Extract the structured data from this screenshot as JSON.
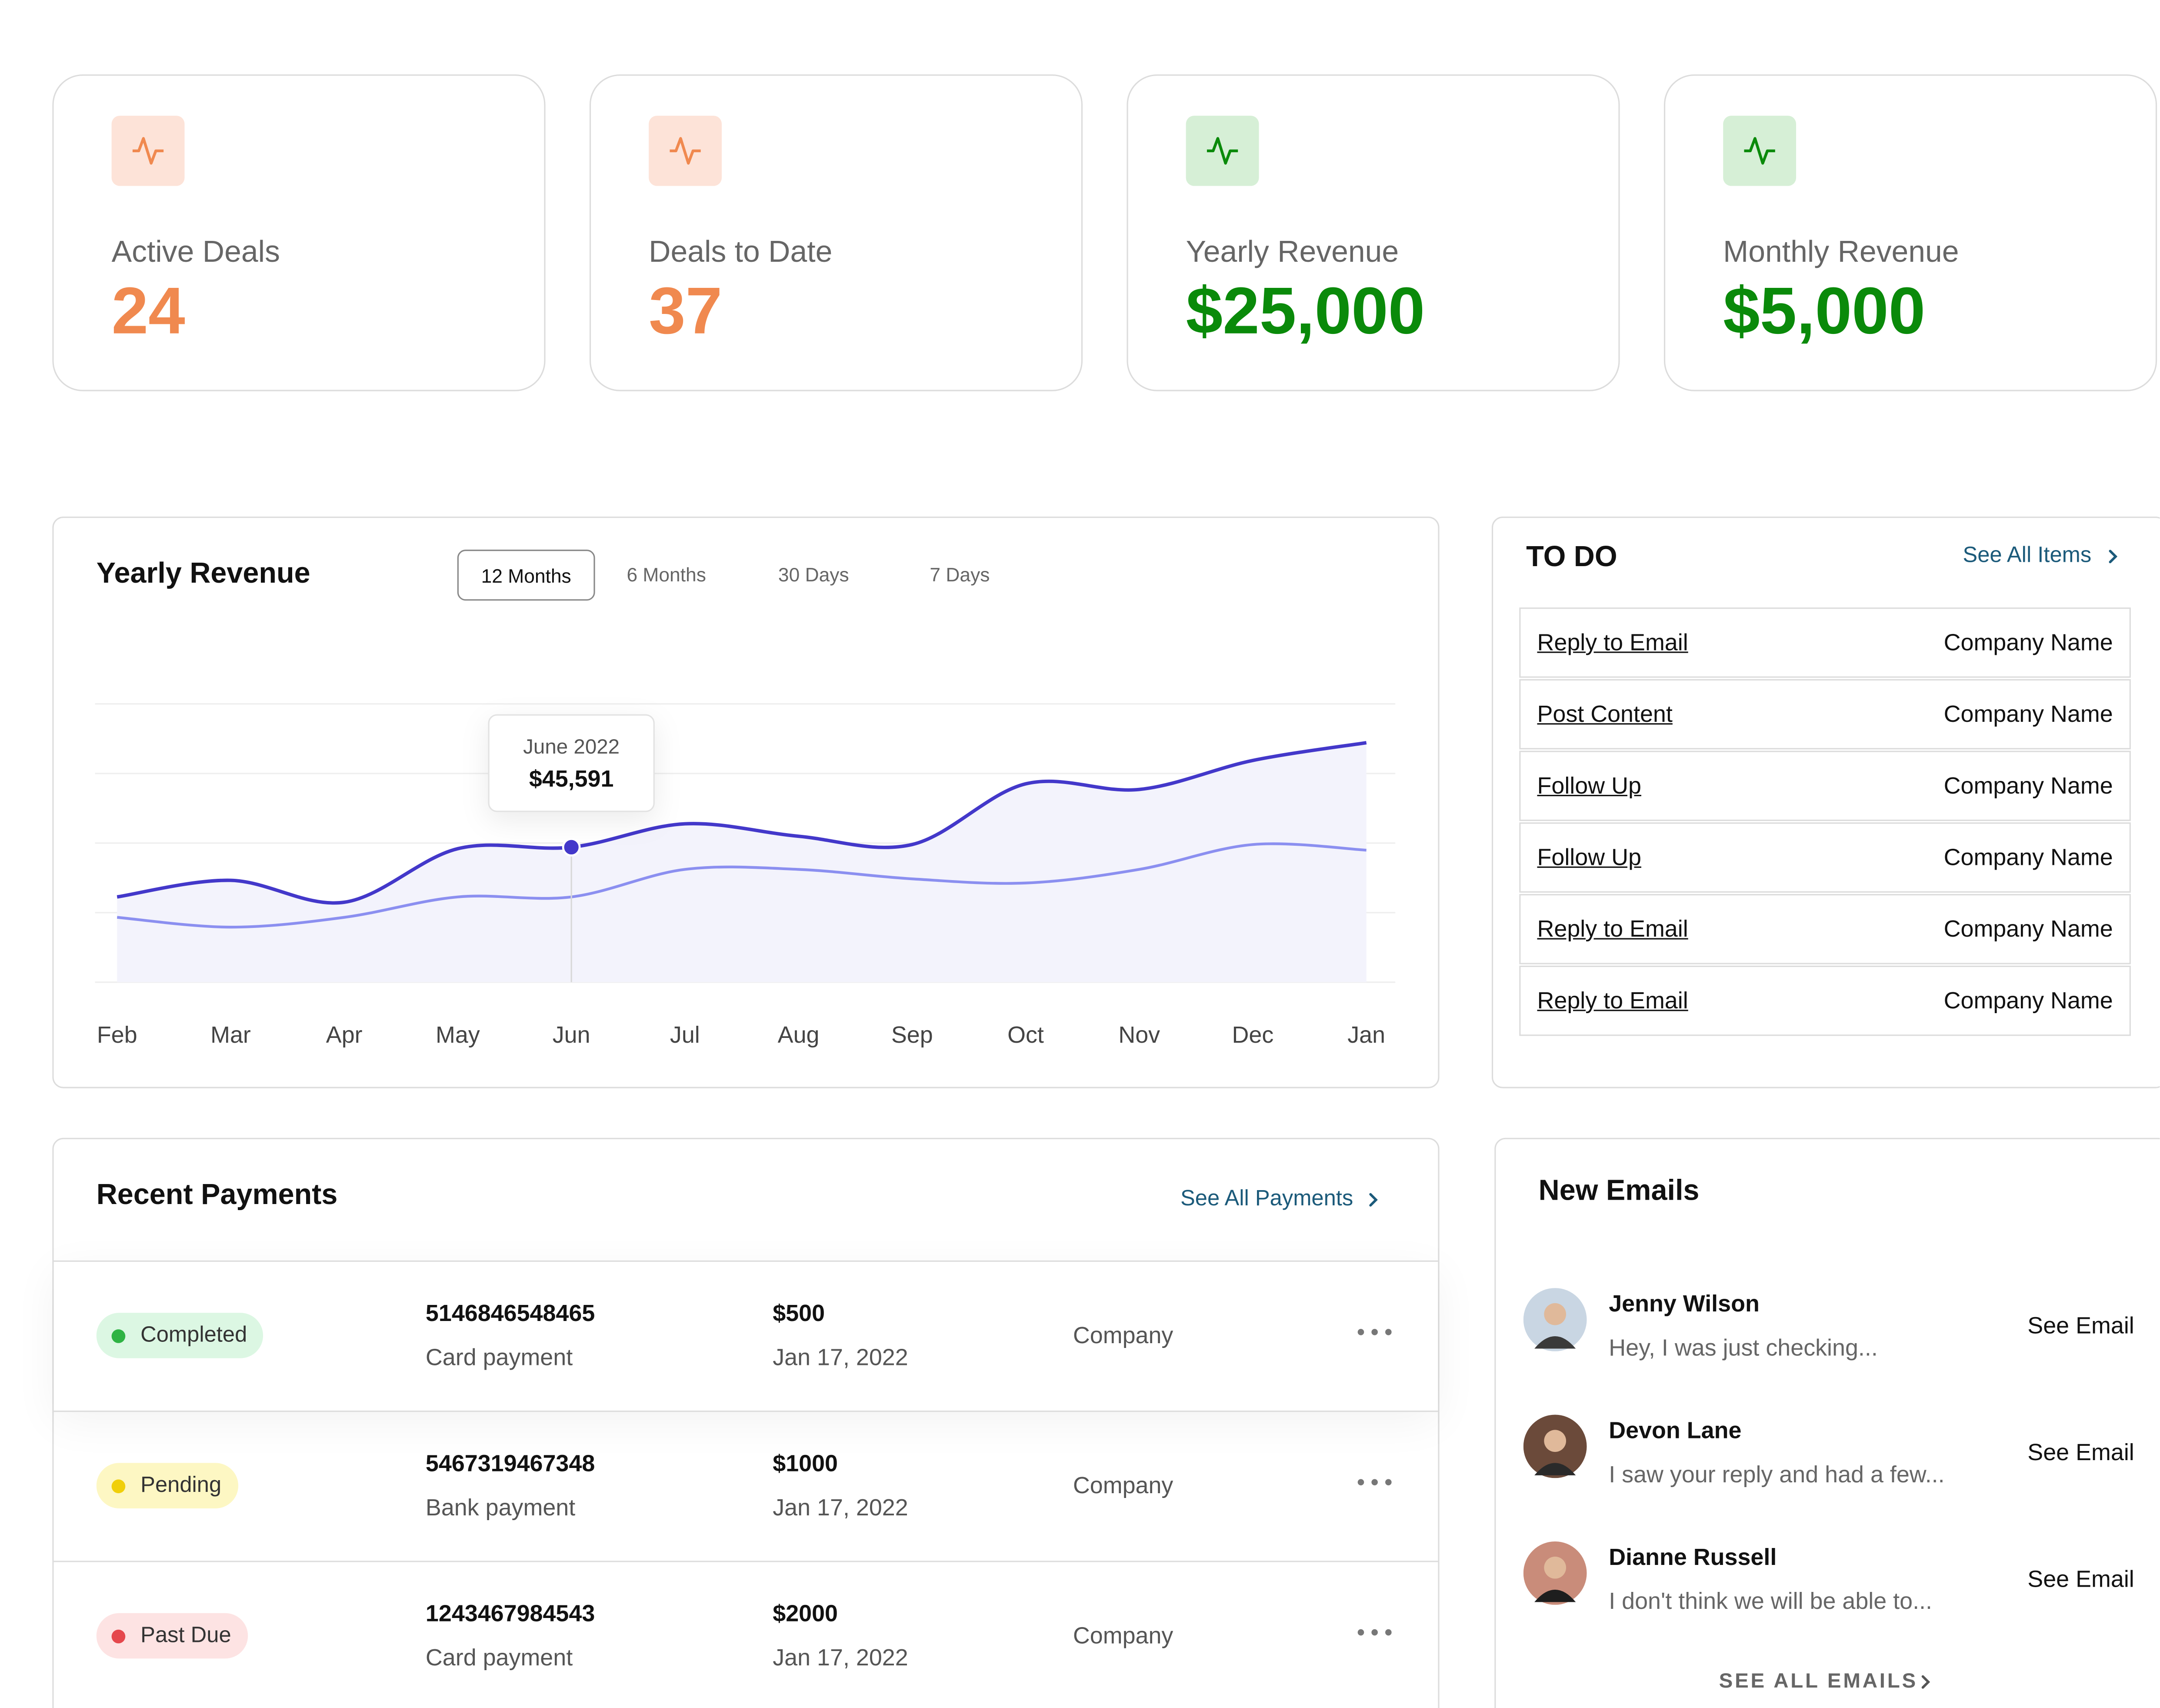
{
  "stat_cards": [
    {
      "label": "Active Deals",
      "value": 24,
      "color": "#f0894f",
      "icon_bg": "#fde3d8"
    },
    {
      "label": "Deals to Date",
      "value": 37,
      "color": "#f0894f",
      "icon_bg": "#fde3d8"
    },
    {
      "label": "Yearly Revenue",
      "value": "$25,000",
      "color": "#0a8a0a",
      "icon_bg": "#d6efd6"
    },
    {
      "label": "Monthly Revenue",
      "value": "$5,000",
      "color": "#0a8a0a",
      "icon_bg": "#d6efd6"
    }
  ],
  "chart_data": {
    "type": "line",
    "title": "Yearly Revenue",
    "ranges": [
      "12 Months",
      "6 Months",
      "30 Days",
      "7 Days"
    ],
    "active_range": 0,
    "categories": [
      "Feb",
      "Mar",
      "Apr",
      "May",
      "Jun",
      "Jul",
      "Aug",
      "Sep",
      "Oct",
      "Nov",
      "Dec",
      "Jan"
    ],
    "series": [
      {
        "color": "#4338ca",
        "values": [
          28800,
          34400,
          27000,
          45100,
          45591,
          53500,
          49300,
          46500,
          67000,
          65100,
          74900,
          80900
        ],
        "value_labels": [
          null,
          null,
          null,
          null,
          "$45,591",
          null,
          null,
          null,
          null,
          null,
          null,
          null
        ]
      },
      {
        "color": "#8b8ff0",
        "values": [
          21900,
          18600,
          21900,
          28800,
          28800,
          38100,
          38100,
          34900,
          33500,
          38100,
          46500,
          44600
        ]
      }
    ],
    "tooltip_title": "June 2022",
    "ylim": [
      0,
      94000
    ],
    "area_color": "#f3f3fc"
  },
  "todo": {
    "title": "TO DO",
    "link": "See All Items",
    "rows": [
      {
        "task": "Reply to Email",
        "company": "Company Name"
      },
      {
        "task": "Post Content",
        "company": "Company Name"
      },
      {
        "task": "Follow Up",
        "company": "Company Name"
      },
      {
        "task": "Follow Up",
        "company": "Company Name"
      },
      {
        "task": "Reply to Email",
        "company": "Company Name"
      },
      {
        "task": "Reply to Email",
        "company": "Company Name"
      }
    ]
  },
  "payments": {
    "title": "Recent Payments",
    "link": "See All Payments",
    "rows": [
      {
        "status": "Completed",
        "dot": "#2fb344",
        "bg": "#dcf7e3",
        "number": "5146846548465",
        "method": "Card payment",
        "amount": "$500",
        "date": "Jan 17, 2022",
        "company": "Company"
      },
      {
        "status": "Pending",
        "dot": "#f0cf0a",
        "bg": "#fdf7c3",
        "number": "5467319467348",
        "method": "Bank payment",
        "amount": "$1000",
        "date": "Jan 17, 2022",
        "company": "Company"
      },
      {
        "status": "Past Due",
        "dot": "#e5484d",
        "bg": "#fde3e3",
        "number": "1243467984543",
        "method": "Card payment",
        "amount": "$2000",
        "date": "Jan 17, 2022",
        "company": "Company"
      }
    ]
  },
  "emails": {
    "title": "New Emails",
    "footer": "SEE ALL EMAILS",
    "items": [
      {
        "name": "Jenny Wilson",
        "preview": "Hey, I was just checking...",
        "action": "See Email"
      },
      {
        "name": "Devon Lane",
        "preview": "I saw your reply and had a  few...",
        "action": "See Email"
      },
      {
        "name": "Dianne Russell",
        "preview": "I don't think we will be able to...",
        "action": "See Email"
      }
    ]
  }
}
